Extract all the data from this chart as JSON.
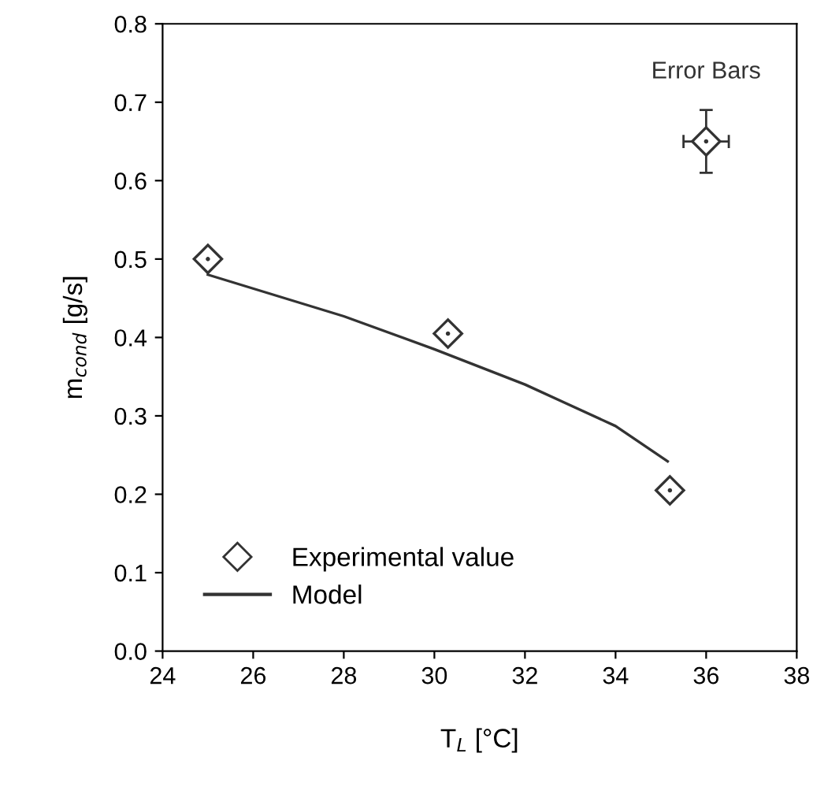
{
  "chart_data": {
    "type": "scatter",
    "xlabel": "T$_{L}$ [°C]",
    "ylabel": "m$_{cond}$ [g/s]",
    "xlim": [
      24,
      38
    ],
    "xticks": [
      24,
      26,
      28,
      30,
      32,
      34,
      36,
      38
    ],
    "ylim": [
      0,
      0.8
    ],
    "yticks": [
      {
        "value": 0,
        "label": "0.0"
      },
      0.1,
      0.2,
      0.3,
      0.4,
      0.5,
      0.6,
      0.7,
      0.8
    ],
    "series": [
      {
        "name": "Experimental value",
        "color": "#333333",
        "marker": "diamond",
        "x": [
          25,
          30.3,
          35.2
        ],
        "values": [
          0.5,
          0.405,
          0.205
        ]
      },
      {
        "name": "Model",
        "type": "line",
        "color": "#333333",
        "marker": "none",
        "line_style": "solid",
        "x": [
          25,
          28,
          30,
          32,
          34,
          35.15
        ],
        "values": [
          0.48,
          0.427,
          0.385,
          0.34,
          0.287,
          0.242
        ]
      },
      {
        "color": "#333333",
        "marker": "diamond",
        "x": [
          36
        ],
        "values": [
          0.65
        ],
        "errors": [
          0.04
        ],
        "xerrors": [
          0.5
        ]
      }
    ],
    "annotations": [
      "Error Bars"
    ],
    "legend": "bottom left",
    "grid": false
  }
}
